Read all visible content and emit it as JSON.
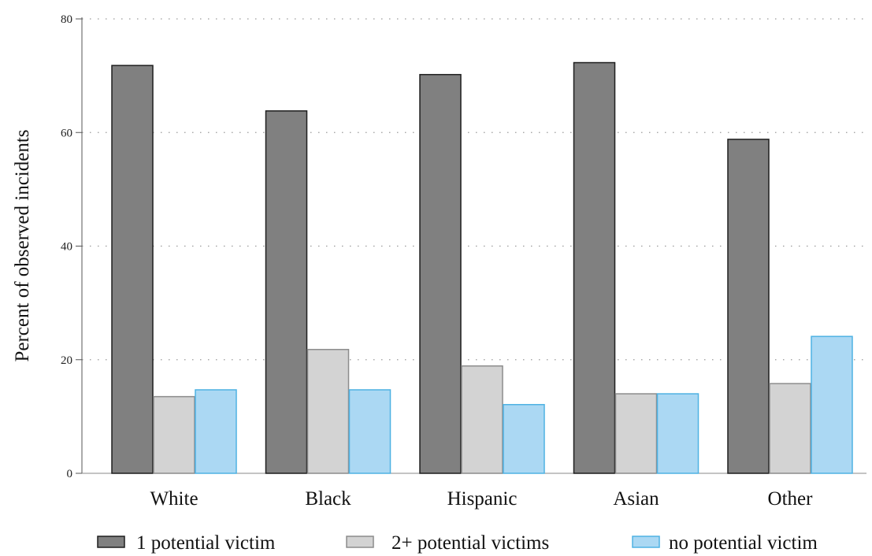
{
  "chart_data": {
    "type": "bar",
    "ylabel": "Percent of observed incidents",
    "xlabel": "",
    "ylim": [
      0,
      80
    ],
    "yticks": [
      0,
      20,
      40,
      60,
      80
    ],
    "grid": "horizontal-dotted",
    "legend_position": "bottom",
    "categories": [
      "White",
      "Black",
      "Hispanic",
      "Asian",
      "Other"
    ],
    "series": [
      {
        "name": "1 potential victim",
        "color": "#808080",
        "values": [
          71.8,
          63.8,
          70.2,
          72.3,
          58.8
        ]
      },
      {
        "name": "2+ potential victims",
        "color": "#d3d3d3",
        "values": [
          13.5,
          21.8,
          18.9,
          14.0,
          15.8
        ]
      },
      {
        "name": "no potential victim",
        "color": "#abd8f3",
        "values": [
          14.7,
          14.7,
          12.1,
          14.0,
          24.1
        ]
      }
    ]
  }
}
